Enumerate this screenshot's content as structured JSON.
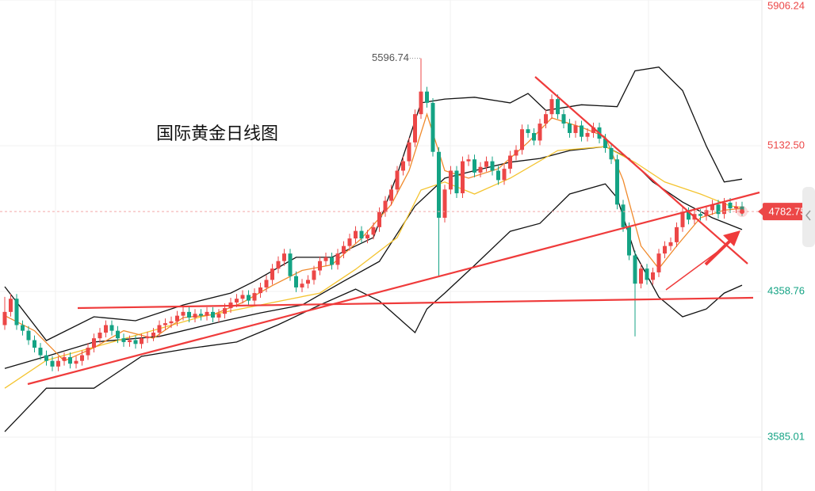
{
  "chart_data": {
    "type": "candlestick",
    "title": "国际黄金日线图",
    "ylim": [
      3299.07,
      5906.24
    ],
    "yticks": [
      5906.24,
      {
        "value": 5132.5,
        "label": "5132.50"
      },
      4358.76,
      3585.01
    ],
    "xlim": [
      -0.8,
      127.2
    ],
    "grid": true,
    "last_price": 4782.75,
    "high_label": 5596.74,
    "up_color": "#ec4747",
    "down_color": "#14a384",
    "candles": {
      "open": [
        4180,
        4250,
        4320,
        4180,
        4150,
        4100,
        4060,
        4020,
        3990,
        3960,
        3990,
        4010,
        3975,
        3990,
        4020,
        4060,
        4110,
        4140,
        4180,
        4150,
        4110,
        4090,
        4100,
        4080,
        4110,
        4120,
        4140,
        4180,
        4190,
        4200,
        4230,
        4250,
        4220,
        4240,
        4230,
        4250,
        4220,
        4240,
        4270,
        4300,
        4320,
        4340,
        4310,
        4350,
        4380,
        4420,
        4480,
        4520,
        4560,
        4440,
        4380,
        4400,
        4420,
        4470,
        4520,
        4540,
        4500,
        4560,
        4600,
        4640,
        4680,
        4640,
        4660,
        4700,
        4780,
        4840,
        4900,
        5000,
        5050,
        5150,
        5300,
        5420,
        5360,
        5100,
        4750,
        4900,
        5000,
        4880,
        5050,
        5060,
        4990,
        5020,
        5050,
        5000,
        4950,
        5010,
        5080,
        5110,
        5220,
        5200,
        5160,
        5250,
        5300,
        5380,
        5300,
        5250,
        5200,
        5240,
        5180,
        5200,
        5230,
        5170,
        5120,
        5060,
        4820,
        4700,
        4550,
        4400,
        4480,
        4420,
        4460,
        4560,
        4600,
        4620,
        4700,
        4780,
        4740,
        4770,
        4760,
        4790,
        4820,
        4770,
        4830,
        4800,
        4810
      ],
      "high": [
        4330,
        4345,
        4345,
        4205,
        4175,
        4125,
        4085,
        4045,
        4015,
        4015,
        4035,
        4035,
        4015,
        4045,
        4085,
        4135,
        4165,
        4205,
        4205,
        4175,
        4135,
        4125,
        4125,
        4135,
        4145,
        4165,
        4205,
        4215,
        4225,
        4255,
        4275,
        4275,
        4265,
        4265,
        4275,
        4275,
        4265,
        4295,
        4325,
        4345,
        4365,
        4365,
        4375,
        4405,
        4445,
        4505,
        4545,
        4585,
        4585,
        4465,
        4425,
        4445,
        4495,
        4545,
        4565,
        4565,
        4585,
        4625,
        4665,
        4705,
        4705,
        4685,
        4725,
        4805,
        4865,
        4925,
        5025,
        5075,
        5175,
        5325,
        5596.74,
        5445,
        5385,
        5125,
        4925,
        5025,
        5025,
        5075,
        5085,
        5085,
        5045,
        5075,
        5075,
        5025,
        5035,
        5105,
        5135,
        5245,
        5245,
        5225,
        5275,
        5325,
        5405,
        5405,
        5325,
        5275,
        5265,
        5265,
        5225,
        5255,
        5255,
        5195,
        5145,
        5085,
        4845,
        4725,
        4575,
        4505,
        4505,
        4485,
        4585,
        4625,
        4645,
        4725,
        4805,
        4805,
        4795,
        4795,
        4815,
        4845,
        4845,
        4855,
        4855,
        4835,
        4835
      ],
      "low": [
        4155,
        4225,
        4155,
        4125,
        4075,
        4035,
        3995,
        3965,
        3935,
        3935,
        3965,
        3950,
        3950,
        3965,
        3995,
        4035,
        4085,
        4115,
        4125,
        4085,
        4065,
        4065,
        4055,
        4055,
        4085,
        4095,
        4115,
        4155,
        4165,
        4175,
        4205,
        4195,
        4195,
        4205,
        4205,
        4195,
        4195,
        4215,
        4245,
        4275,
        4295,
        4285,
        4285,
        4325,
        4355,
        4395,
        4455,
        4495,
        4415,
        4355,
        4355,
        4375,
        4395,
        4445,
        4495,
        4475,
        4475,
        4535,
        4575,
        4615,
        4615,
        4615,
        4635,
        4675,
        4755,
        4815,
        4875,
        4975,
        5025,
        5125,
        5275,
        5335,
        5075,
        4440,
        4725,
        4875,
        4855,
        4855,
        5025,
        4965,
        4965,
        4995,
        4975,
        4925,
        4925,
        4985,
        5055,
        5085,
        5175,
        5135,
        5135,
        5225,
        5275,
        5275,
        5225,
        5175,
        5175,
        5155,
        5155,
        5175,
        5145,
        5095,
        5035,
        4795,
        4675,
        4525,
        4120,
        4375,
        4395,
        4395,
        4435,
        4535,
        4575,
        4595,
        4675,
        4715,
        4715,
        4735,
        4735,
        4765,
        4745,
        4745,
        4775,
        4775,
        4760
      ],
      "close": [
        4250,
        4320,
        4180,
        4150,
        4100,
        4060,
        4020,
        3990,
        3960,
        3990,
        4010,
        3975,
        3990,
        4020,
        4060,
        4110,
        4140,
        4180,
        4150,
        4110,
        4090,
        4100,
        4080,
        4110,
        4120,
        4140,
        4180,
        4190,
        4200,
        4230,
        4250,
        4220,
        4240,
        4230,
        4250,
        4220,
        4240,
        4270,
        4300,
        4320,
        4340,
        4310,
        4350,
        4380,
        4420,
        4480,
        4520,
        4560,
        4440,
        4380,
        4400,
        4420,
        4470,
        4520,
        4540,
        4500,
        4560,
        4600,
        4640,
        4680,
        4640,
        4660,
        4700,
        4780,
        4840,
        4900,
        5000,
        5050,
        5150,
        5300,
        5420,
        5360,
        5100,
        4750,
        4900,
        5000,
        4880,
        5050,
        5060,
        4990,
        5020,
        5050,
        5000,
        4950,
        5010,
        5080,
        5110,
        5220,
        5200,
        5160,
        5250,
        5300,
        5380,
        5300,
        5250,
        5200,
        5240,
        5180,
        5200,
        5230,
        5170,
        5120,
        5060,
        4820,
        4700,
        4550,
        4400,
        4480,
        4420,
        4460,
        4560,
        4600,
        4620,
        4700,
        4780,
        4740,
        4770,
        4760,
        4790,
        4820,
        4770,
        4830,
        4800,
        4810,
        4782.75
      ]
    },
    "lines": [
      {
        "color": "#111111",
        "x": [
          0,
          7,
          15,
          22,
          30,
          38,
          42,
          49,
          55,
          62,
          66,
          70,
          74,
          79,
          85,
          88,
          91,
          97,
          103,
          106,
          110,
          114,
          118,
          121,
          124
        ],
        "values": [
          4384,
          4098,
          4224,
          4203,
          4287,
          4350,
          4413,
          4540,
          4540,
          4645,
          4980,
          5360,
          5380,
          5390,
          5360,
          5410,
          5320,
          5350,
          5340,
          5530,
          5550,
          5425,
          5130,
          4940,
          4955
        ]
      },
      {
        "color": "#111111",
        "x": [
          0,
          7,
          15,
          26,
          37,
          43,
          50,
          57,
          63,
          69,
          74,
          79,
          85,
          90,
          95,
          101,
          105,
          109,
          114,
          119,
          124
        ],
        "values": [
          3950,
          4014,
          4090,
          4120,
          4203,
          4245,
          4287,
          4413,
          4518,
          4812,
          4960,
          5000,
          5045,
          5065,
          5107,
          5128,
          5065,
          4940,
          4833,
          4750,
          4687
        ]
      },
      {
        "color": "#111111",
        "x": [
          0,
          7,
          15,
          23,
          31,
          39,
          46,
          53,
          59,
          63,
          66,
          69,
          71,
          74,
          79,
          85,
          90,
          95,
          101,
          103,
          106,
          110,
          114,
          118,
          121,
          124
        ],
        "values": [
          3614,
          3845,
          3845,
          4014,
          4056,
          4090,
          4182,
          4287,
          4371,
          4308,
          4224,
          4140,
          4266,
          4350,
          4497,
          4678,
          4720,
          4876,
          4930,
          4855,
          4560,
          4329,
          4224,
          4266,
          4350,
          4392
        ]
      },
      {
        "color": "#f4c430",
        "x": [
          0,
          7,
          19,
          33,
          43,
          53,
          59,
          66,
          70,
          74,
          79,
          85,
          93,
          101,
          106,
          111,
          117,
          122,
          124
        ],
        "values": [
          3845,
          3993,
          4098,
          4224,
          4287,
          4350,
          4476,
          4645,
          4897,
          4940,
          4876,
          4960,
          5107,
          5128,
          5044,
          4940,
          4876,
          4813,
          4805
        ]
      },
      {
        "color": "#f08a2c",
        "x": [
          0,
          5,
          10,
          15,
          20,
          25,
          30,
          35,
          40,
          45,
          50,
          55,
          60,
          65,
          68,
          71,
          74,
          78,
          83,
          88,
          92,
          97,
          101,
          104,
          107,
          110,
          113,
          117,
          121,
          124
        ],
        "values": [
          4230,
          4150,
          3990,
          4060,
          4150,
          4110,
          4220,
          4235,
          4300,
          4390,
          4470,
          4500,
          4640,
          4820,
          5000,
          5300,
          5000,
          4960,
          5010,
          5150,
          5280,
          5230,
          5180,
          4950,
          4600,
          4480,
          4600,
          4750,
          4790,
          4800
        ]
      }
    ]
  }
}
